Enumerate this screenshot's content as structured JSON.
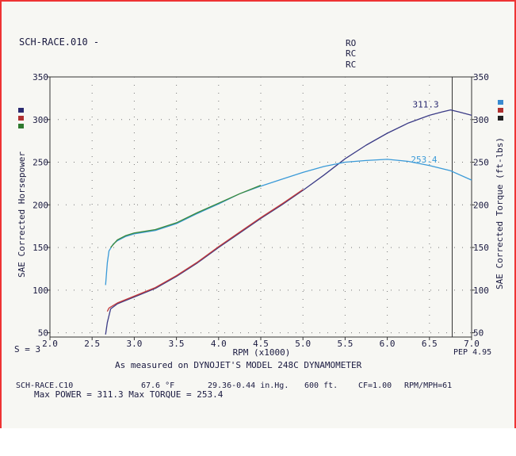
{
  "header": {
    "run_title": "SCH-RACE.010 -",
    "run_codes": [
      "RO",
      "RC",
      "RC"
    ],
    "right_stamp": "PEP 4.95",
    "smoothing": "S = 3"
  },
  "footer": {
    "measured_on": "As measured on DYNOJET'S MODEL 248C DYNAMOMETER",
    "file": "SCH-RACE.C10",
    "temp": "67.6 °F",
    "pressure": "29.36-0.44 in.Hg.",
    "altitude": "600 ft.",
    "cf": "CF=1.00",
    "rpm_mph": "RPM/MPH=61",
    "max_power_line": "Max POWER = 311.3  Max TORQUE = 253.4"
  },
  "chart_data": {
    "type": "line",
    "xlabel": "RPM (x1000)",
    "ylabel_left": "SAE Corrected Horsepower",
    "ylabel_right": "SAE Corrected Torque (ft-lbs)",
    "xlim": [
      2.0,
      7.0
    ],
    "ylim": [
      45,
      350
    ],
    "x_ticks": [
      2.0,
      2.5,
      3.0,
      3.5,
      4.0,
      4.5,
      5.0,
      5.5,
      6.0,
      6.5,
      7.0
    ],
    "x_tick_labels": [
      "2.0",
      "2.5",
      "3.0",
      "3.5",
      "4.0",
      "4.5",
      "5.0",
      "5.5",
      "6.0",
      "6.5",
      "7.0"
    ],
    "y_ticks": [
      50,
      100,
      150,
      200,
      250,
      300,
      350
    ],
    "y_tick_labels": [
      "50",
      "100",
      "150",
      "200",
      "250",
      "300",
      "350"
    ],
    "grid": true,
    "peak_marker_rpm": 6.77,
    "annotations": [
      {
        "text": "311.3",
        "x": 6.3,
        "y": 311.3,
        "color": "#2a2a70"
      },
      {
        "text": "253.4",
        "x": 6.28,
        "y": 247,
        "color": "#3a9ad8"
      }
    ],
    "series": [
      {
        "color": "#3b3b86",
        "x": [
          2.66,
          2.68,
          2.72,
          2.8,
          3.0,
          3.25,
          3.5,
          3.75,
          4.0,
          4.25,
          4.5,
          4.75,
          5.0,
          5.25,
          5.5,
          5.75,
          6.0,
          6.25,
          6.5,
          6.65,
          6.75,
          6.85,
          7.0
        ],
        "values": [
          48,
          62,
          78,
          84,
          92,
          102,
          116,
          132,
          150,
          167,
          184,
          200,
          217,
          235,
          254,
          270,
          284,
          296,
          305,
          309,
          311.3,
          309,
          305
        ]
      },
      {
        "color": "#3a9ad8",
        "x": [
          2.66,
          2.68,
          2.7,
          2.75,
          2.8,
          2.9,
          3.0,
          3.25,
          3.5,
          3.75,
          4.0,
          4.25,
          4.5,
          4.75,
          5.0,
          5.25,
          5.5,
          5.75,
          6.0,
          6.25,
          6.5,
          6.75,
          7.0
        ],
        "values": [
          106,
          132,
          146,
          154,
          158,
          163,
          166,
          170,
          178,
          190,
          201,
          213,
          222,
          230,
          238,
          245,
          250,
          252,
          253.4,
          251,
          246,
          240,
          229
        ]
      },
      {
        "color": "#c43a3a",
        "x": [
          2.68,
          2.7,
          2.8,
          3.0,
          3.25,
          3.5,
          3.75,
          4.0,
          4.25,
          4.5,
          4.75,
          5.0
        ],
        "values": [
          75,
          79,
          85,
          93,
          103,
          117,
          133,
          151,
          168,
          185,
          201,
          218
        ]
      },
      {
        "color": "#3c8a3c",
        "x": [
          2.72,
          2.8,
          2.9,
          3.0,
          3.25,
          3.5,
          3.75,
          4.0,
          4.25,
          4.5
        ],
        "values": [
          150,
          159,
          164,
          167,
          171,
          179,
          191,
          202,
          213,
          223
        ]
      }
    ]
  }
}
